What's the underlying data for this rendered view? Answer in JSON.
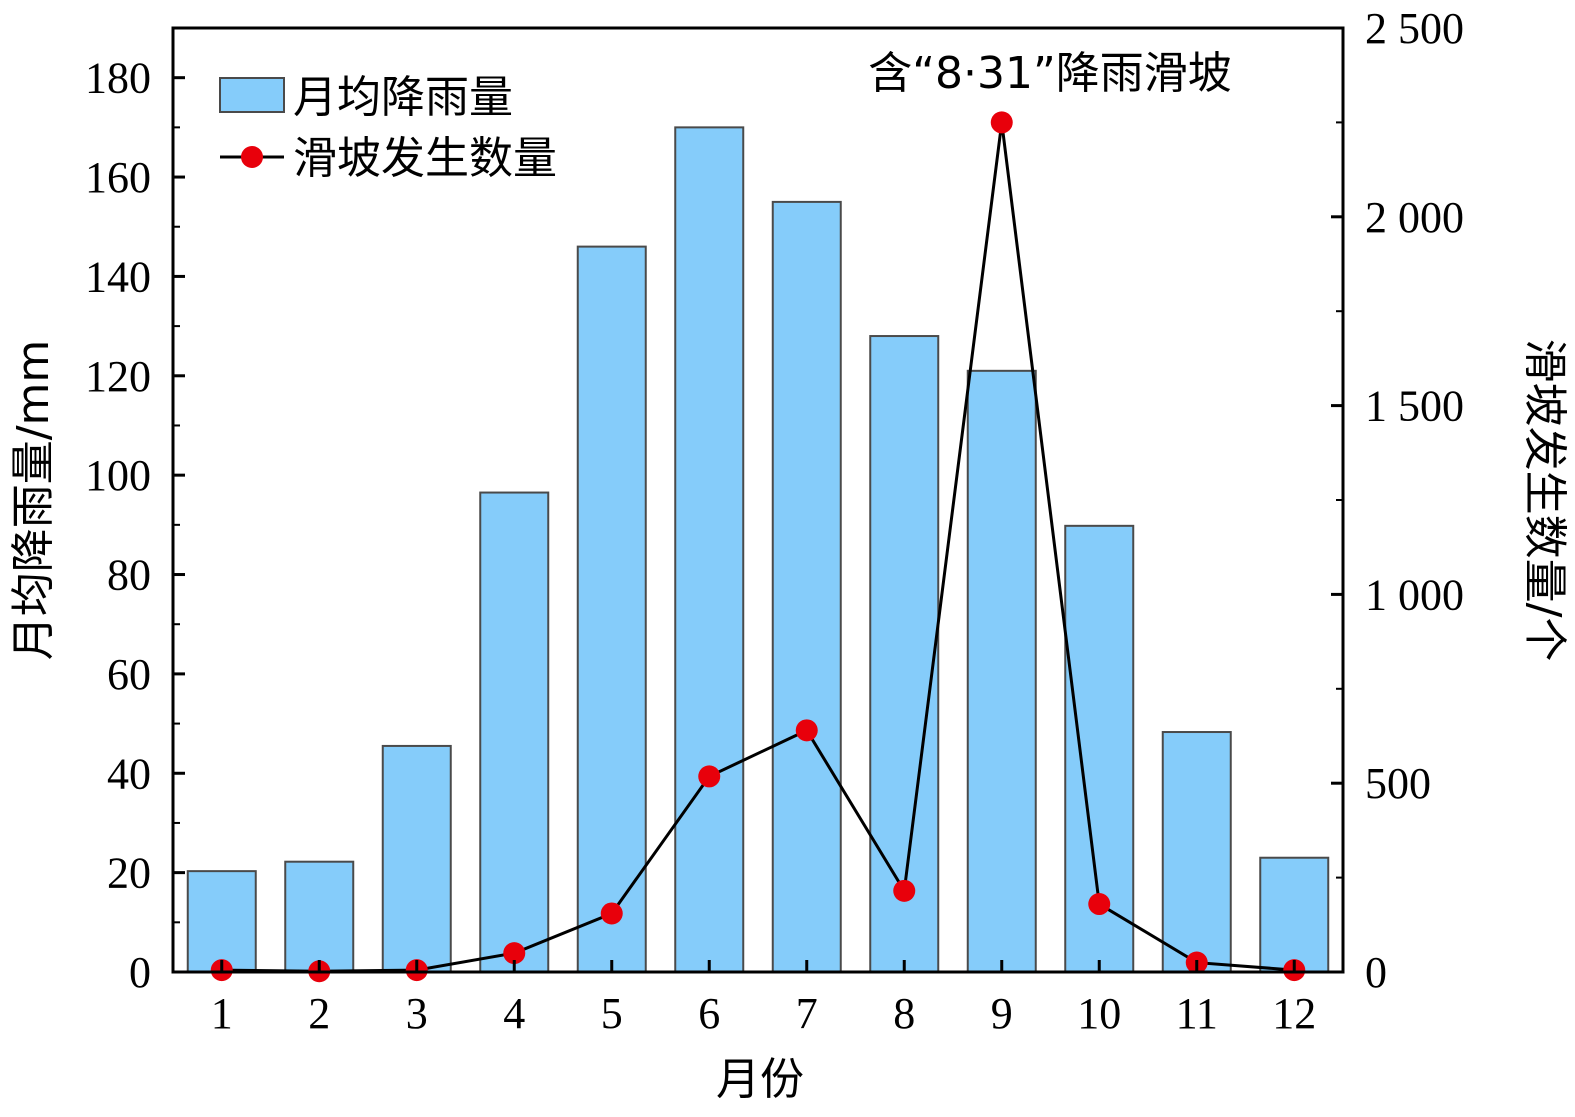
{
  "chart_data": {
    "type": "bar",
    "categories": [
      "1",
      "2",
      "3",
      "4",
      "5",
      "6",
      "7",
      "8",
      "9",
      "10",
      "11",
      "12"
    ],
    "series": [
      {
        "name": "月均降雨量",
        "type": "bar",
        "axis": "left",
        "values": [
          20.3,
          22.2,
          45.5,
          96.5,
          146,
          170,
          155,
          128,
          121,
          89.8,
          48.3,
          23
        ]
      },
      {
        "name": "滑坡发生数量",
        "type": "line",
        "axis": "right",
        "values": [
          5,
          2,
          5,
          50,
          155,
          518,
          640,
          215,
          2250,
          180,
          25,
          5
        ]
      }
    ],
    "xlabel": "月份",
    "ylabel": "月均降雨量/mm",
    "ylabel_right": "滑坡发生数量/个",
    "ylim": [
      0,
      190
    ],
    "ylim_right": [
      0,
      2500
    ],
    "yticks": [
      0,
      20,
      40,
      60,
      80,
      100,
      120,
      140,
      160,
      180
    ],
    "yticks_right": [
      0,
      500,
      1000,
      1500,
      2000,
      2500
    ],
    "ytick_labels_right": [
      "0",
      "500",
      "1 000",
      "1 500",
      "2 000",
      "2 500"
    ],
    "annotation": "含“8·31”降雨滑坡",
    "legend_position": "top-left",
    "colors": {
      "bar_fill": "#85CCFA",
      "bar_stroke": "#4a4a4a",
      "line": "#000000",
      "marker": "#E8000B"
    }
  }
}
